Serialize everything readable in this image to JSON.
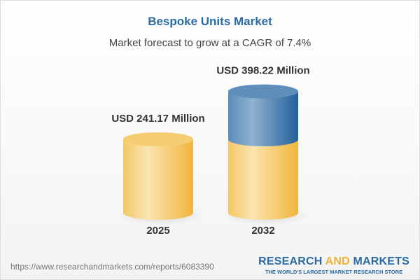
{
  "header": {
    "title": "Bespoke Units Market",
    "subtitle": "Market forecast to grow at a CAGR of 7.4%"
  },
  "chart_data": {
    "type": "bar",
    "style": "3d-cylinder",
    "categories": [
      "2025",
      "2032"
    ],
    "values": [
      241.17,
      398.22
    ],
    "data_labels": [
      "USD 241.17 Million",
      "USD 398.22 Million"
    ],
    "unit": "USD Million",
    "title": "Bespoke Units Market",
    "subtitle": "Market forecast to grow at a CAGR of 7.4%",
    "colors": {
      "base": "#f2c15a",
      "growth": "#3f78a8"
    },
    "grid": false
  },
  "footer": {
    "url": "https://www.researchandmarkets.com/reports/6083390",
    "logo_part1": "RESEARCH ",
    "logo_part2": "AND",
    "logo_part3": " MARKETS",
    "tagline": "THE WORLD'S LARGEST MARKET RESEARCH STORE"
  }
}
